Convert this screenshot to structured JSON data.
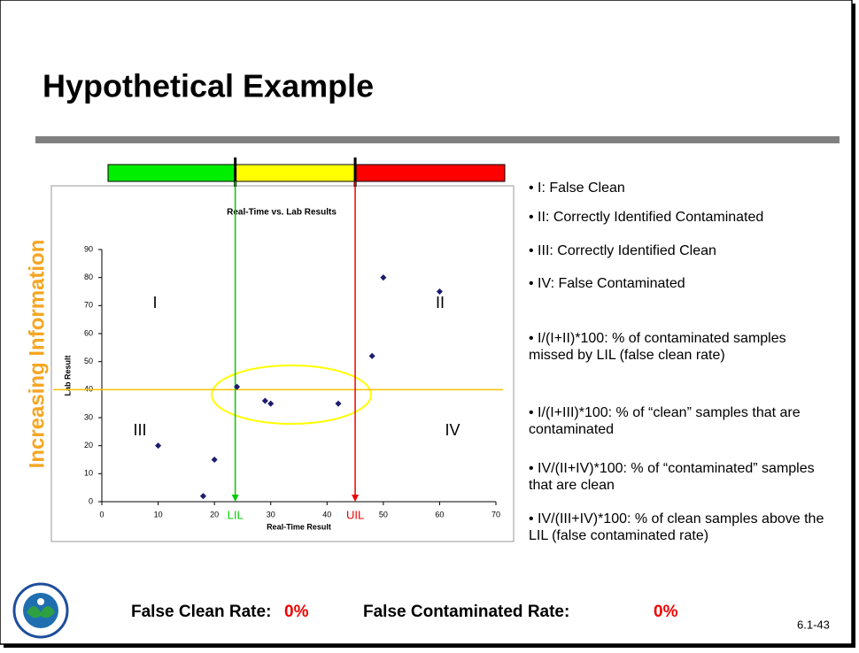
{
  "title": "Hypothetical Example",
  "side_label": "Increasing Information",
  "bullets": [
    "I: False Clean",
    "II: Correctly Identified Contaminated",
    "III: Correctly Identified Clean",
    "IV: False Contaminated",
    "I/(I+II)*100: % of contaminated samples missed by LIL (false clean rate)",
    "I/(I+III)*100: % of “clean” samples that are contaminated",
    "IV/(II+IV)*100: % of “contaminated” samples that are clean",
    "IV/(III+IV)*100: % of clean samples above the LIL (false contaminated rate)"
  ],
  "footer": {
    "clean_label": "False Clean Rate:",
    "clean_value": "0%",
    "contaminated_label": "False Contaminated Rate:",
    "contaminated_value": "0%"
  },
  "slide_number": "6.1-43",
  "chart_data": {
    "type": "scatter",
    "title": "Real-Time vs. Lab Results",
    "x_label": "Real-Time Result",
    "y_label": "Lab Result",
    "x": [
      10,
      18,
      20,
      24,
      29,
      30,
      42,
      48,
      50,
      60
    ],
    "values": [
      20,
      2,
      15,
      41,
      36,
      35,
      35,
      52,
      80,
      75
    ],
    "color": "#1c1c6e",
    "xlim": [
      0,
      70
    ],
    "xticks": [
      0,
      10,
      20,
      30,
      40,
      50,
      60,
      70
    ],
    "ylim": [
      0,
      90
    ],
    "yticks": [
      0,
      10,
      20,
      30,
      40,
      50,
      60,
      70,
      80,
      90
    ],
    "quadrant_labels": [
      "I",
      "II",
      "III",
      "IV"
    ],
    "lil": {
      "label": "LIL",
      "x": 23.7,
      "color": "#00cc00"
    },
    "uil": {
      "label": "UIL",
      "x": 45,
      "color": "#ee0000"
    },
    "threshold": {
      "y": 40,
      "color": "#ffc000"
    }
  }
}
